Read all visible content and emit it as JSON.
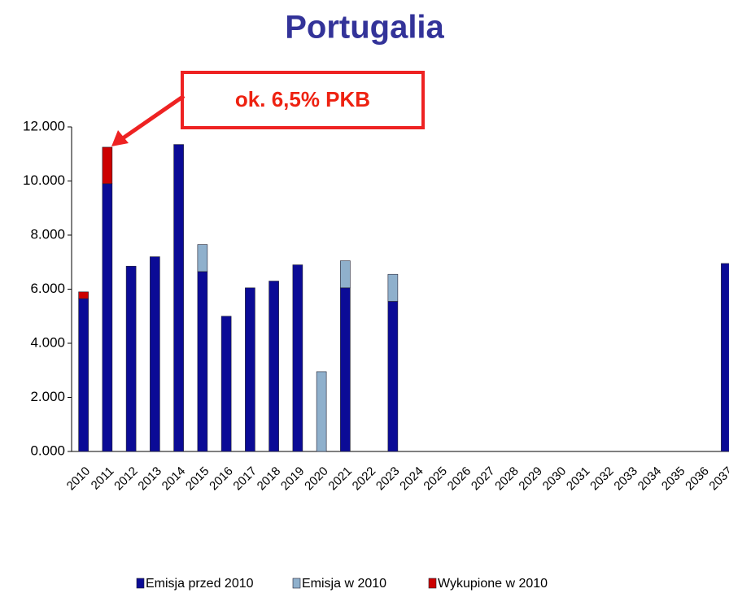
{
  "chart_data": {
    "type": "stacked_bar",
    "title": "Portugalia",
    "annotation": "ok. 6,5% PKB",
    "categories": [
      "2010",
      "2011",
      "2012",
      "2013",
      "2014",
      "2015",
      "2016",
      "2017",
      "2018",
      "2019",
      "2020",
      "2021",
      "2022",
      "2023",
      "2024",
      "2025",
      "2026",
      "2027",
      "2028",
      "2029",
      "2030",
      "2031",
      "2032",
      "2033",
      "2034",
      "2035",
      "2036",
      "2037"
    ],
    "series": [
      {
        "name": "Emisja przed 2010",
        "color": "#0b0b96",
        "values": [
          5650,
          9900,
          6850,
          7200,
          11350,
          6650,
          5000,
          6050,
          6300,
          6900,
          null,
          6050,
          null,
          5550,
          null,
          null,
          null,
          null,
          null,
          null,
          null,
          null,
          null,
          null,
          null,
          null,
          null,
          6950
        ]
      },
      {
        "name": "Emisja w 2010",
        "color": "#8fb0cc",
        "values": [
          null,
          null,
          null,
          null,
          null,
          1000,
          null,
          null,
          null,
          null,
          2950,
          1000,
          null,
          1000,
          null,
          null,
          null,
          null,
          null,
          null,
          null,
          null,
          null,
          null,
          null,
          null,
          null,
          null
        ]
      },
      {
        "name": "Wykupione w 2010",
        "color": "#cc0000",
        "values": [
          250,
          1350,
          null,
          null,
          null,
          null,
          null,
          null,
          null,
          null,
          null,
          null,
          null,
          null,
          null,
          null,
          null,
          null,
          null,
          null,
          null,
          null,
          null,
          null,
          null,
          null,
          null,
          null
        ]
      }
    ],
    "ylim": [
      0,
      12000
    ],
    "yticks": [
      {
        "value": 0,
        "label": "0.000"
      },
      {
        "value": 2000,
        "label": "2.000"
      },
      {
        "value": 4000,
        "label": "4.000"
      },
      {
        "value": 6000,
        "label": "6.000"
      },
      {
        "value": 8000,
        "label": "8.000"
      },
      {
        "value": 10000,
        "label": "10.000"
      },
      {
        "value": 12000,
        "label": "12.000"
      }
    ]
  }
}
